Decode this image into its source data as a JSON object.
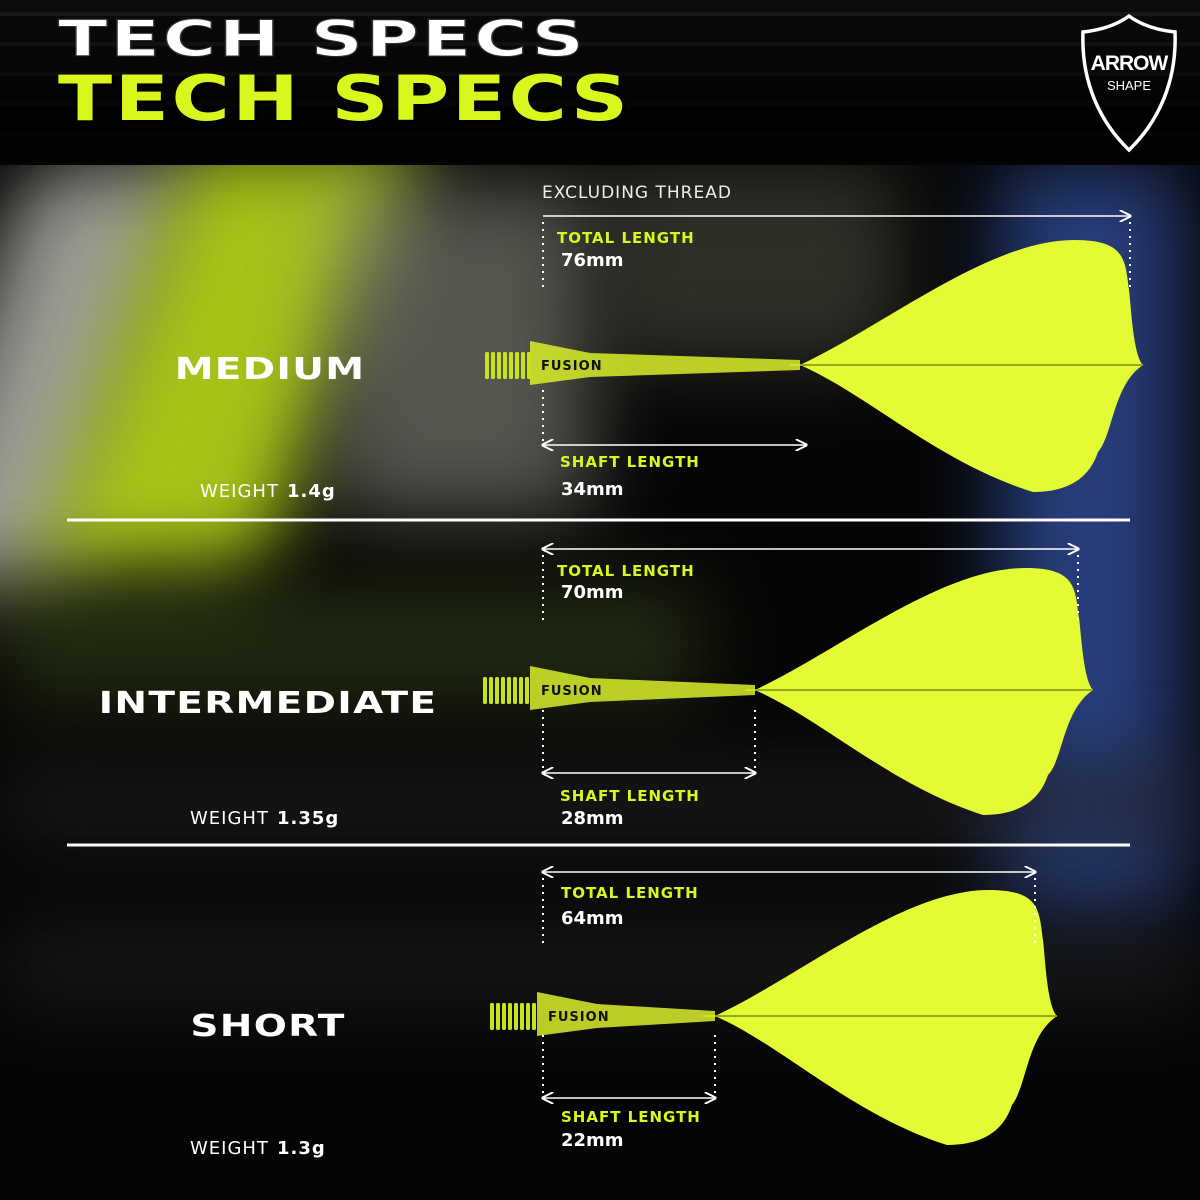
{
  "header": {
    "title_outline": "TECH SPECS",
    "title": "TECH SPECS",
    "badge_line1": "ARROW",
    "badge_line2": "SHAPE"
  },
  "colors": {
    "accent": "#d9f61d",
    "flight": "#e3fb34",
    "background": "#050505"
  },
  "excluding_note": "EXCLUDING THREAD",
  "sizes": [
    {
      "name": "MEDIUM",
      "weight_label": "WEIGHT",
      "weight": "1.4g",
      "total_label": "TOTAL LENGTH",
      "total": "76mm",
      "shaft_label": "SHAFT LENGTH",
      "shaft": "34mm",
      "brand": "FUSION"
    },
    {
      "name": "INTERMEDIATE",
      "weight_label": "WEIGHT",
      "weight": "1.35g",
      "total_label": "TOTAL LENGTH",
      "total": "70mm",
      "shaft_label": "SHAFT LENGTH",
      "shaft": "28mm",
      "brand": "FUSION"
    },
    {
      "name": "SHORT",
      "weight_label": "WEIGHT",
      "weight": "1.3g",
      "total_label": "TOTAL LENGTH",
      "total": "64mm",
      "shaft_label": "SHAFT LENGTH",
      "shaft": "22mm",
      "brand": "FUSION"
    }
  ]
}
